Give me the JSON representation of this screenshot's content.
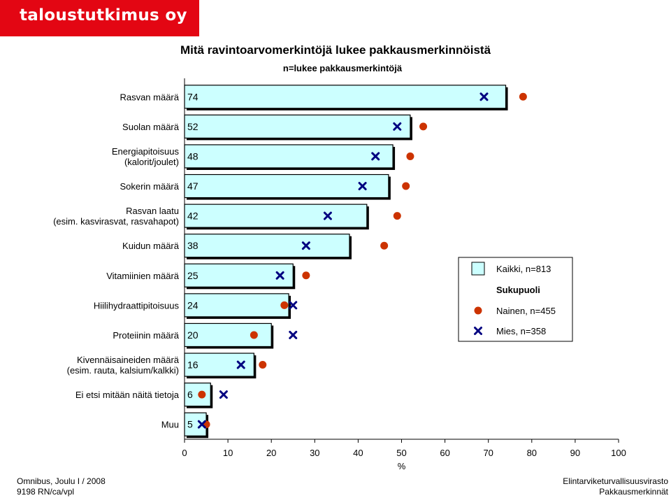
{
  "header": {
    "logo_text": "taloustutkimus oy"
  },
  "chart_data": {
    "type": "bar",
    "title": "Mitä ravintoarvomerkintöjä lukee pakkausmerkinnöistä",
    "subtitle": "n=lukee pakkausmerkintöjä",
    "xlabel": "%",
    "xlim": [
      0,
      100
    ],
    "xticks": [
      0,
      10,
      20,
      30,
      40,
      50,
      60,
      70,
      80,
      90,
      100
    ],
    "categories": [
      [
        "Rasvan määrä"
      ],
      [
        "Suolan määrä"
      ],
      [
        "Energiapitoisuus",
        "(kalorit/joulet)"
      ],
      [
        "Sokerin määrä"
      ],
      [
        "Rasvan laatu",
        "(esim. kasvirasvat, rasvahapot)"
      ],
      [
        "Kuidun määrä"
      ],
      [
        "Vitamiinien määrä"
      ],
      [
        "Hiilihydraattipitoisuus"
      ],
      [
        "Proteiinin määrä"
      ],
      [
        "Kivennäisaineiden määrä",
        "(esim. rauta, kalsium/kalkki)"
      ],
      [
        "Ei etsi mitään näitä tietoja"
      ],
      [
        "Muu"
      ]
    ],
    "series": [
      {
        "name": "Kaikki, n=813",
        "values": [
          74,
          52,
          48,
          47,
          42,
          38,
          25,
          24,
          20,
          16,
          6,
          5
        ],
        "color": "#ccffff"
      },
      {
        "name": "Nainen, n=455",
        "values": [
          78,
          55,
          52,
          51,
          49,
          46,
          28,
          23,
          16,
          18,
          4,
          5
        ],
        "color": "#cc3300",
        "marker": "circle"
      },
      {
        "name": "Mies, n=358",
        "values": [
          69,
          49,
          44,
          41,
          33,
          28,
          22,
          25,
          25,
          13,
          9,
          4
        ],
        "color": "#000080",
        "marker": "x"
      }
    ],
    "legend": {
      "position": "right",
      "group_label": "Sukupuoli"
    },
    "grid": false
  },
  "footer": {
    "left_line1": "Omnibus, Joulu I / 2008",
    "left_line2": "9198 RN/ca/vpl",
    "right_line1": "Elintarviketurvallisuusvirasto",
    "right_line2": "Pakkausmerkinnät"
  }
}
